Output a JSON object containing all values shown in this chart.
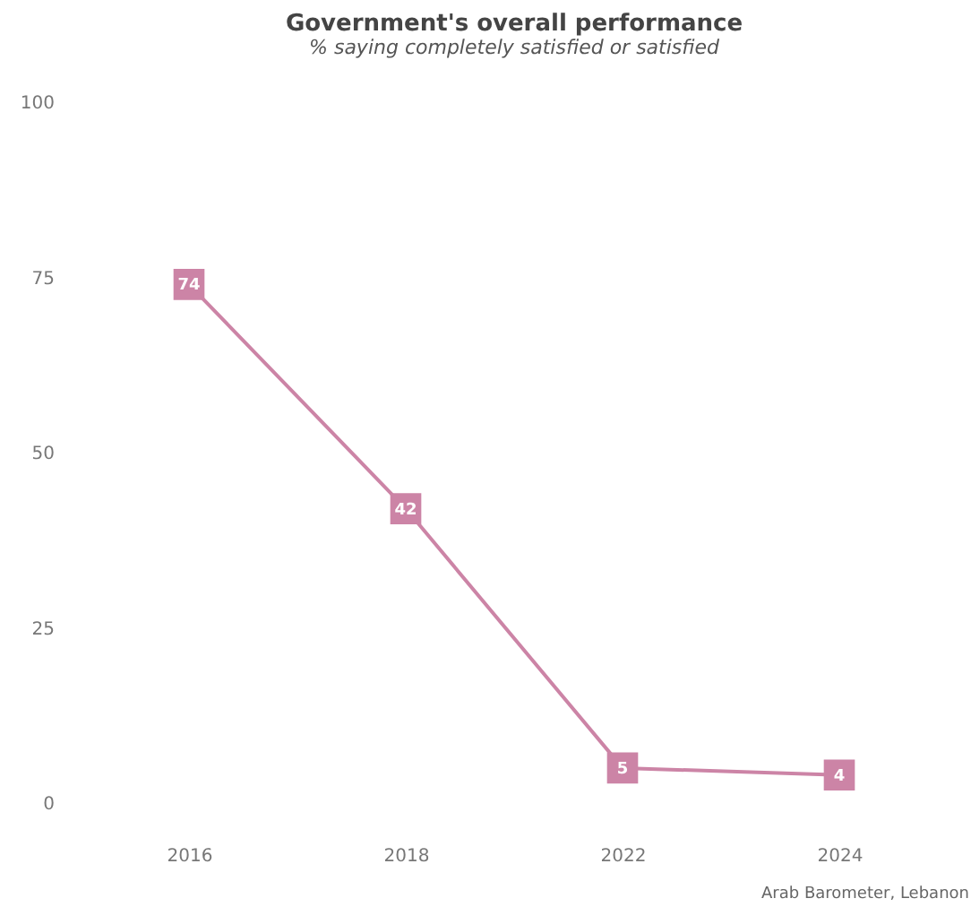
{
  "chart_data": {
    "type": "line",
    "title": "Government's overall performance",
    "subtitle": "% saying completely satisfied or satisfied",
    "categories": [
      "2016",
      "2018",
      "2022",
      "2024"
    ],
    "series": [
      {
        "color": "#cc84a6",
        "values": [
          74,
          42,
          5,
          4
        ]
      }
    ],
    "ylim": [
      0,
      100
    ],
    "yticks": [
      0,
      25,
      50,
      75,
      100
    ],
    "grid": false,
    "marker": "square",
    "line_style": "solid",
    "data_labels": true,
    "annotations": [
      "Arab Barometer, Lebanon"
    ]
  }
}
